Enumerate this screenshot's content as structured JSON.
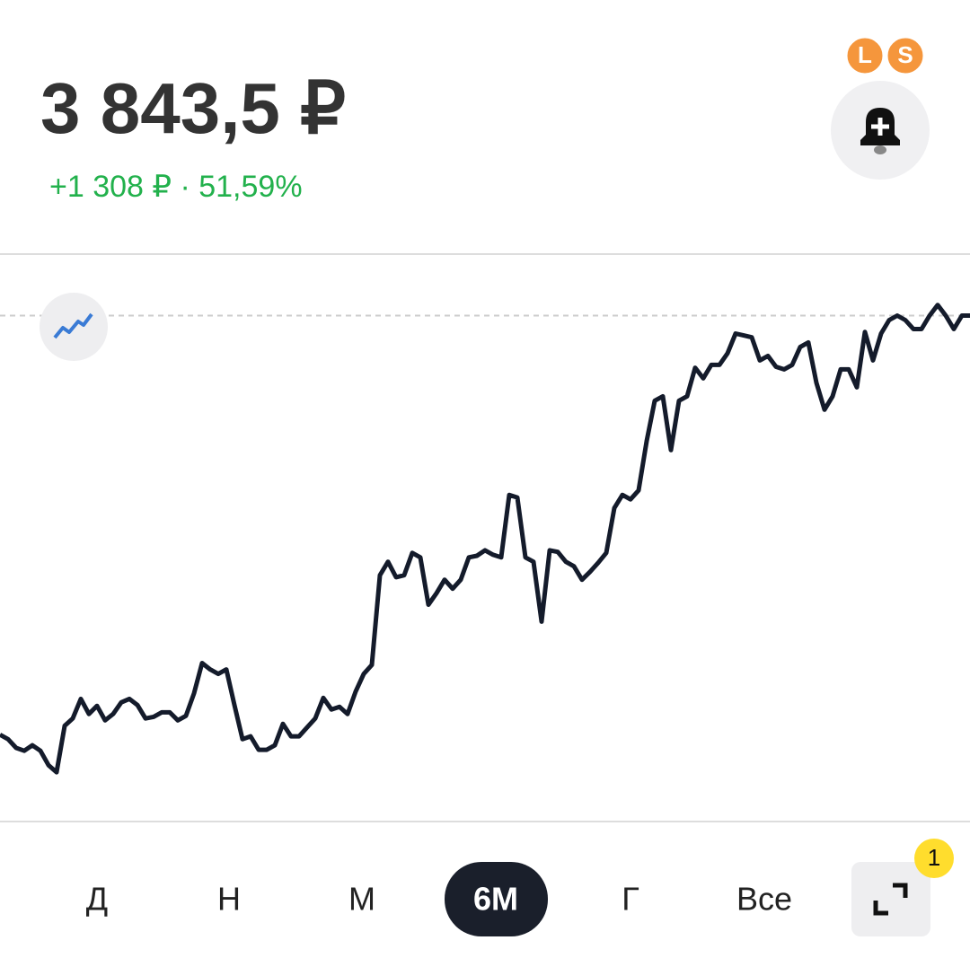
{
  "header": {
    "price": "3 843,5 ₽",
    "change": "+1 308 ₽ · 51,59%",
    "badges": [
      "L",
      "S"
    ]
  },
  "chart_data": {
    "type": "line",
    "color": "#141b2b",
    "ylim": [
      2264,
      4036
    ],
    "values": [
      2535,
      2521,
      2494,
      2485,
      2502,
      2485,
      2440,
      2418,
      2563,
      2586,
      2647,
      2600,
      2625,
      2580,
      2600,
      2636,
      2647,
      2628,
      2586,
      2591,
      2605,
      2605,
      2580,
      2594,
      2664,
      2759,
      2739,
      2725,
      2739,
      2628,
      2521,
      2530,
      2488,
      2488,
      2502,
      2569,
      2530,
      2530,
      2558,
      2586,
      2650,
      2614,
      2622,
      2600,
      2670,
      2725,
      2753,
      3033,
      3075,
      3027,
      3033,
      3103,
      3089,
      2941,
      2977,
      3019,
      2991,
      3019,
      3089,
      3094,
      3111,
      3097,
      3089,
      3284,
      3276,
      3089,
      3075,
      2888,
      3111,
      3106,
      3075,
      3061,
      3019,
      3044,
      3072,
      3103,
      3243,
      3284,
      3270,
      3298,
      3452,
      3578,
      3592,
      3424,
      3578,
      3592,
      3681,
      3648,
      3690,
      3690,
      3726,
      3788,
      3782,
      3776,
      3704,
      3718,
      3684,
      3676,
      3690,
      3746,
      3760,
      3634,
      3550,
      3592,
      3676,
      3676,
      3620,
      3793,
      3704,
      3788,
      3830,
      3844,
      3830,
      3802,
      3802,
      3844,
      3877,
      3844,
      3802,
      3844,
      3844
    ]
  },
  "periods": [
    "Д",
    "Н",
    "М",
    "6М",
    "Г",
    "Все"
  ],
  "selected_index": 3,
  "expand_badge": "1"
}
